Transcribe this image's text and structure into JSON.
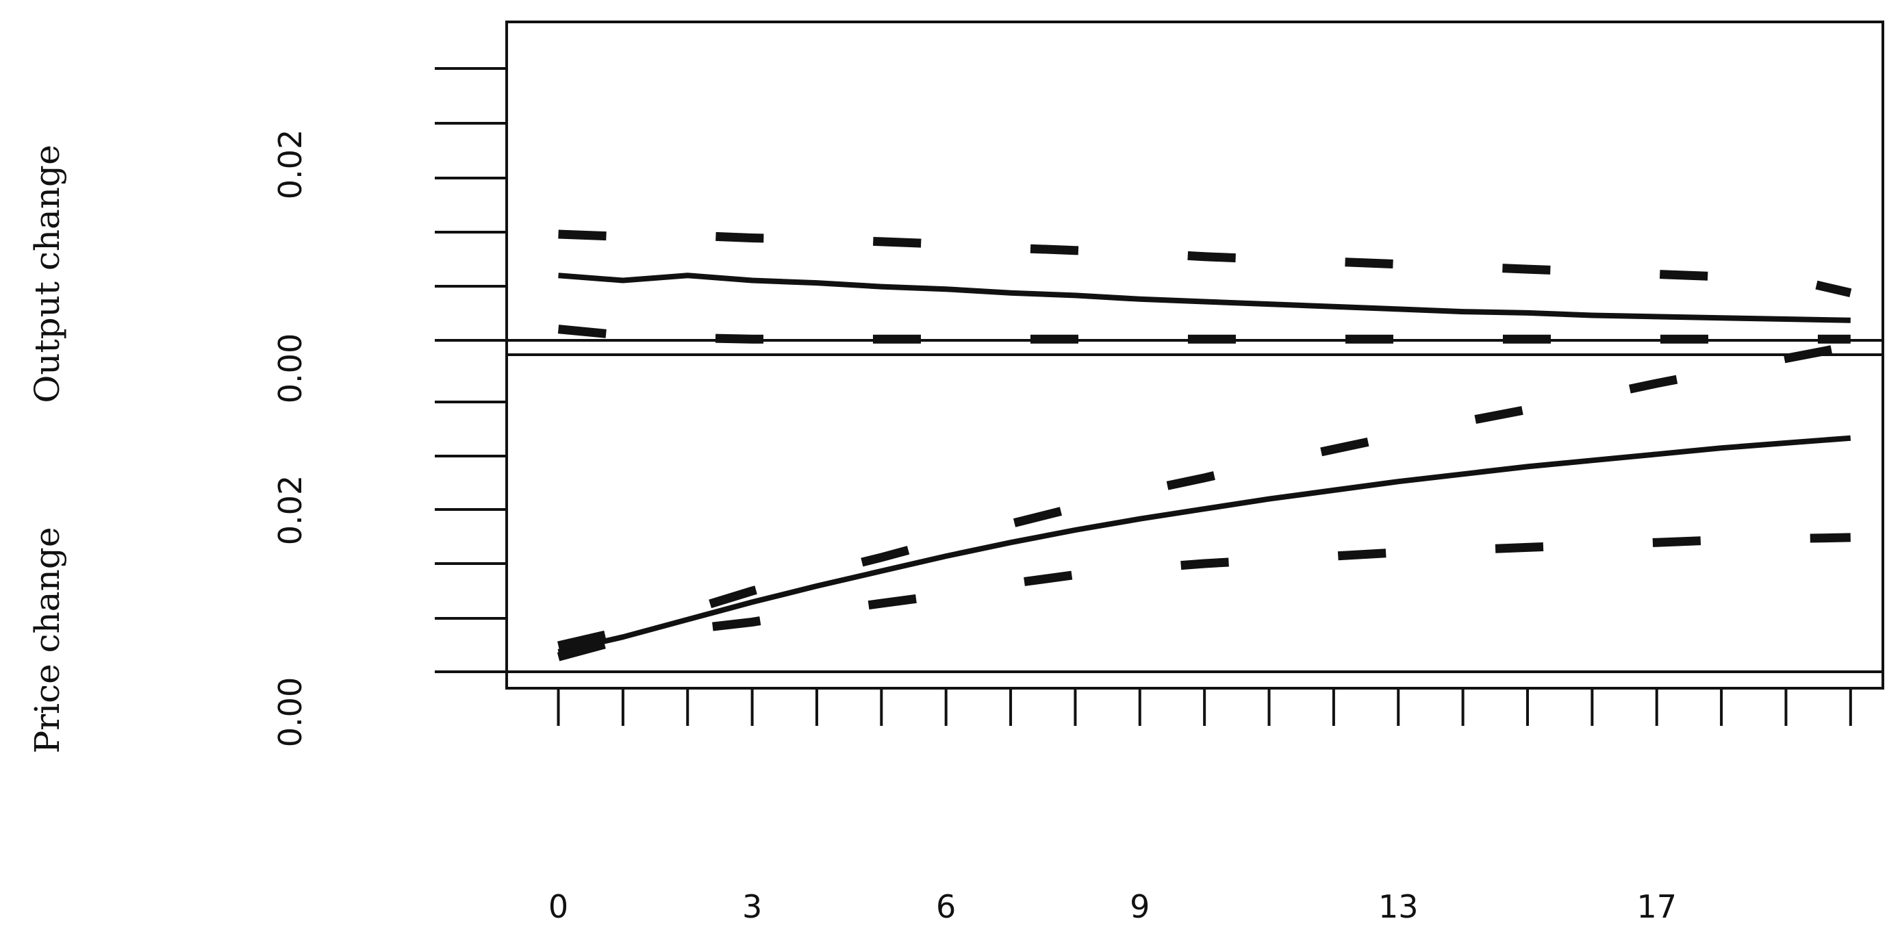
{
  "chart_data": [
    {
      "type": "line",
      "panel": "top",
      "ylabel": "Output change",
      "ytick_labels": [
        "0.00",
        "0.02"
      ],
      "ytick_values": [
        0.0,
        0.02
      ],
      "ylim": [
        0.0,
        0.0255
      ],
      "x": [
        0,
        1,
        2,
        3,
        4,
        5,
        6,
        7,
        8,
        9,
        10,
        11,
        12,
        13,
        14,
        15,
        16,
        17,
        18,
        19,
        20
      ],
      "xlim": [
        -0.8,
        20.5
      ],
      "series": [
        {
          "style": "solid",
          "values": [
            0.0052,
            0.0048,
            0.0052,
            0.0048,
            0.0046,
            0.0043,
            0.0041,
            0.0038,
            0.0036,
            0.0033,
            0.0031,
            0.0029,
            0.0027,
            0.0025,
            0.0023,
            0.0022,
            0.002,
            0.0019,
            0.0018,
            0.0017,
            0.0016
          ]
        },
        {
          "style": "dashed",
          "values": [
            0.0085,
            0.0083,
            0.0084,
            0.0082,
            0.0081,
            0.0079,
            0.0077,
            0.0074,
            0.0072,
            0.007,
            0.0067,
            0.0065,
            0.0063,
            0.0061,
            0.0059,
            0.0057,
            0.0055,
            0.0053,
            0.0051,
            0.005,
            0.0038
          ]
        },
        {
          "style": "dashed",
          "values": [
            0.0009,
            0.0004,
            0.0002,
            0.0001,
            0.0001,
            0.0001,
            0.0001,
            0.0001,
            0.0001,
            0.0001,
            0.0001,
            0.0001,
            0.0001,
            0.0001,
            0.0001,
            0.0001,
            0.0001,
            0.0001,
            0.0001,
            0.0001,
            0.0001
          ]
        }
      ]
    },
    {
      "type": "line",
      "panel": "bottom",
      "ylabel": "Price change",
      "ytick_labels": [
        "0.00",
        "0.02"
      ],
      "ytick_values": [
        0.0,
        0.02
      ],
      "ylim": [
        0.0,
        0.0255
      ],
      "x": [
        0,
        1,
        2,
        3,
        4,
        5,
        6,
        7,
        8,
        9,
        10,
        11,
        12,
        13,
        14,
        15,
        16,
        17,
        18,
        19,
        20
      ],
      "xlim": [
        -0.8,
        20.5
      ],
      "xtick_labels": [
        "0",
        "3",
        "6",
        "9",
        "13",
        "17"
      ],
      "xtick_values": [
        0,
        3,
        6,
        9,
        13,
        17
      ],
      "series": [
        {
          "style": "solid",
          "values": [
            0.0016,
            0.0028,
            0.0042,
            0.0056,
            0.0069,
            0.0081,
            0.0093,
            0.0104,
            0.0114,
            0.0123,
            0.0131,
            0.0139,
            0.0146,
            0.0153,
            0.0159,
            0.0165,
            0.017,
            0.0175,
            0.018,
            0.0184,
            0.0188
          ]
        },
        {
          "style": "dashed",
          "values": [
            0.0021,
            0.0033,
            0.0049,
            0.0065,
            0.0079,
            0.0092,
            0.0106,
            0.0119,
            0.0132,
            0.0145,
            0.0156,
            0.0168,
            0.0179,
            0.019,
            0.0201,
            0.0211,
            0.0221,
            0.0232,
            0.0242,
            0.0252,
            0.0262
          ]
        },
        {
          "style": "dashed",
          "values": [
            0.0012,
            0.0026,
            0.0034,
            0.004,
            0.0048,
            0.0055,
            0.0062,
            0.0071,
            0.0078,
            0.0083,
            0.0087,
            0.009,
            0.0093,
            0.0096,
            0.0098,
            0.01,
            0.0102,
            0.0104,
            0.0106,
            0.0107,
            0.0108
          ]
        }
      ]
    }
  ]
}
